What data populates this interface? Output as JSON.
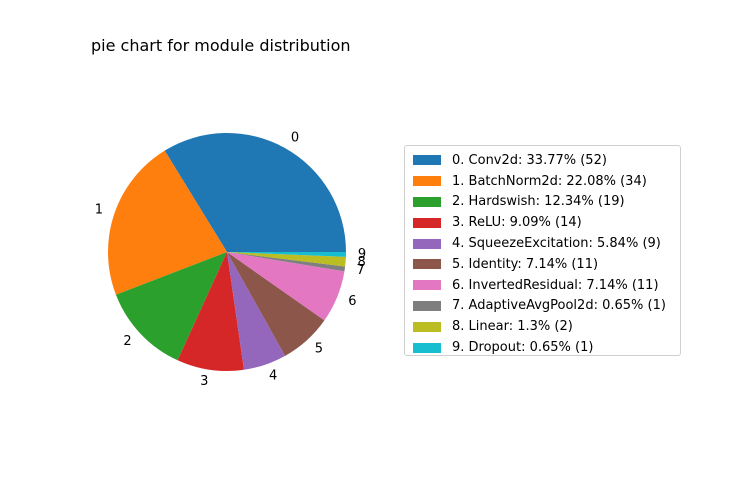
{
  "chart_data": {
    "type": "pie",
    "title": "pie chart for module distribution",
    "start_angle_deg": 0,
    "direction": "counterclockwise",
    "legend_position": "right",
    "slices": [
      {
        "label": "0",
        "legend": "0. Conv2d: 33.77% (52)",
        "name": "Conv2d",
        "percent": 33.77,
        "count": 52,
        "color": "#1f77b4"
      },
      {
        "label": "1",
        "legend": "1. BatchNorm2d: 22.08% (34)",
        "name": "BatchNorm2d",
        "percent": 22.08,
        "count": 34,
        "color": "#ff7f0e"
      },
      {
        "label": "2",
        "legend": "2. Hardswish: 12.34% (19)",
        "name": "Hardswish",
        "percent": 12.34,
        "count": 19,
        "color": "#2ca02c"
      },
      {
        "label": "3",
        "legend": "3. ReLU: 9.09% (14)",
        "name": "ReLU",
        "percent": 9.09,
        "count": 14,
        "color": "#d62728"
      },
      {
        "label": "4",
        "legend": "4. SqueezeExcitation: 5.84% (9)",
        "name": "SqueezeExcitation",
        "percent": 5.84,
        "count": 9,
        "color": "#9467bd"
      },
      {
        "label": "5",
        "legend": "5. Identity: 7.14% (11)",
        "name": "Identity",
        "percent": 7.14,
        "count": 11,
        "color": "#8c564b"
      },
      {
        "label": "6",
        "legend": "6. InvertedResidual: 7.14% (11)",
        "name": "InvertedResidual",
        "percent": 7.14,
        "count": 11,
        "color": "#e377c2"
      },
      {
        "label": "7",
        "legend": "7. AdaptiveAvgPool2d: 0.65% (1)",
        "name": "AdaptiveAvgPool2d",
        "percent": 0.65,
        "count": 1,
        "color": "#7f7f7f"
      },
      {
        "label": "8",
        "legend": "8. Linear: 1.3% (2)",
        "name": "Linear",
        "percent": 1.3,
        "count": 2,
        "color": "#bcbd22"
      },
      {
        "label": "9",
        "legend": "9. Dropout: 0.65% (1)",
        "name": "Dropout",
        "percent": 0.65,
        "count": 1,
        "color": "#17becf"
      }
    ]
  }
}
